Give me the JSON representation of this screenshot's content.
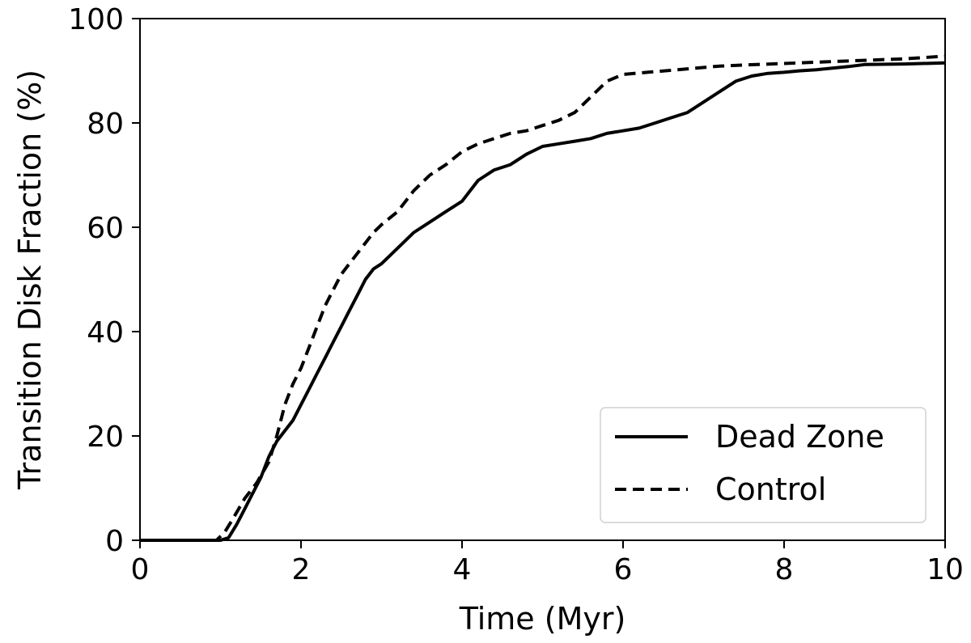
{
  "chart_data": {
    "type": "line",
    "xlabel": "Time (Myr)",
    "ylabel": "Transition Disk Fraction (%)",
    "xlim": [
      0,
      10
    ],
    "ylim": [
      0,
      100
    ],
    "xticks": [
      0,
      2,
      4,
      6,
      8,
      10
    ],
    "yticks": [
      0,
      20,
      40,
      60,
      80,
      100
    ],
    "grid": false,
    "legend_position": "bottom-right",
    "series": [
      {
        "name": "Dead Zone",
        "line_style": "solid",
        "color": "#000000",
        "points": [
          [
            0,
            0
          ],
          [
            1.0,
            0
          ],
          [
            1.1,
            0.5
          ],
          [
            1.2,
            3
          ],
          [
            1.3,
            6
          ],
          [
            1.4,
            9
          ],
          [
            1.5,
            12
          ],
          [
            1.6,
            16
          ],
          [
            1.7,
            19
          ],
          [
            1.8,
            21
          ],
          [
            1.9,
            23
          ],
          [
            2.0,
            26
          ],
          [
            2.1,
            29
          ],
          [
            2.2,
            32
          ],
          [
            2.3,
            35
          ],
          [
            2.4,
            38
          ],
          [
            2.5,
            41
          ],
          [
            2.6,
            44
          ],
          [
            2.7,
            47
          ],
          [
            2.8,
            50
          ],
          [
            2.9,
            52
          ],
          [
            3.0,
            53
          ],
          [
            3.2,
            56
          ],
          [
            3.4,
            59
          ],
          [
            3.6,
            61
          ],
          [
            3.8,
            63
          ],
          [
            4.0,
            65
          ],
          [
            4.2,
            69
          ],
          [
            4.4,
            71
          ],
          [
            4.6,
            72
          ],
          [
            4.8,
            74
          ],
          [
            5.0,
            75.5
          ],
          [
            5.2,
            76
          ],
          [
            5.4,
            76.5
          ],
          [
            5.6,
            77
          ],
          [
            5.8,
            78
          ],
          [
            6.0,
            78.5
          ],
          [
            6.2,
            79
          ],
          [
            6.4,
            80
          ],
          [
            6.6,
            81
          ],
          [
            6.8,
            82
          ],
          [
            7.0,
            84
          ],
          [
            7.2,
            86
          ],
          [
            7.4,
            88
          ],
          [
            7.6,
            89
          ],
          [
            7.8,
            89.5
          ],
          [
            8.0,
            89.7
          ],
          [
            8.2,
            90
          ],
          [
            8.4,
            90.2
          ],
          [
            8.6,
            90.5
          ],
          [
            8.8,
            90.8
          ],
          [
            9.0,
            91.2
          ],
          [
            9.5,
            91.3
          ],
          [
            10.0,
            91.5
          ]
        ]
      },
      {
        "name": "Control",
        "line_style": "dashed",
        "color": "#000000",
        "points": [
          [
            0,
            0
          ],
          [
            0.95,
            0
          ],
          [
            1.05,
            1.5
          ],
          [
            1.15,
            4
          ],
          [
            1.3,
            8
          ],
          [
            1.45,
            11
          ],
          [
            1.6,
            15
          ],
          [
            1.7,
            20
          ],
          [
            1.8,
            26
          ],
          [
            1.9,
            30
          ],
          [
            2.0,
            33
          ],
          [
            2.1,
            37
          ],
          [
            2.2,
            41
          ],
          [
            2.3,
            45
          ],
          [
            2.4,
            48
          ],
          [
            2.5,
            51
          ],
          [
            2.6,
            53
          ],
          [
            2.7,
            55
          ],
          [
            2.8,
            57
          ],
          [
            2.9,
            59
          ],
          [
            3.0,
            60.5
          ],
          [
            3.2,
            63
          ],
          [
            3.4,
            67
          ],
          [
            3.6,
            70
          ],
          [
            3.8,
            72
          ],
          [
            4.0,
            74.5
          ],
          [
            4.2,
            76
          ],
          [
            4.4,
            77
          ],
          [
            4.6,
            78
          ],
          [
            4.8,
            78.5
          ],
          [
            5.0,
            79.5
          ],
          [
            5.2,
            80.5
          ],
          [
            5.4,
            82
          ],
          [
            5.6,
            85
          ],
          [
            5.8,
            88
          ],
          [
            6.0,
            89.3
          ],
          [
            6.3,
            89.7
          ],
          [
            6.6,
            90.1
          ],
          [
            6.9,
            90.5
          ],
          [
            7.2,
            90.9
          ],
          [
            7.5,
            91.1
          ],
          [
            8.0,
            91.4
          ],
          [
            8.5,
            91.7
          ],
          [
            9.0,
            92
          ],
          [
            9.5,
            92.3
          ],
          [
            10.0,
            92.8
          ]
        ]
      }
    ]
  }
}
